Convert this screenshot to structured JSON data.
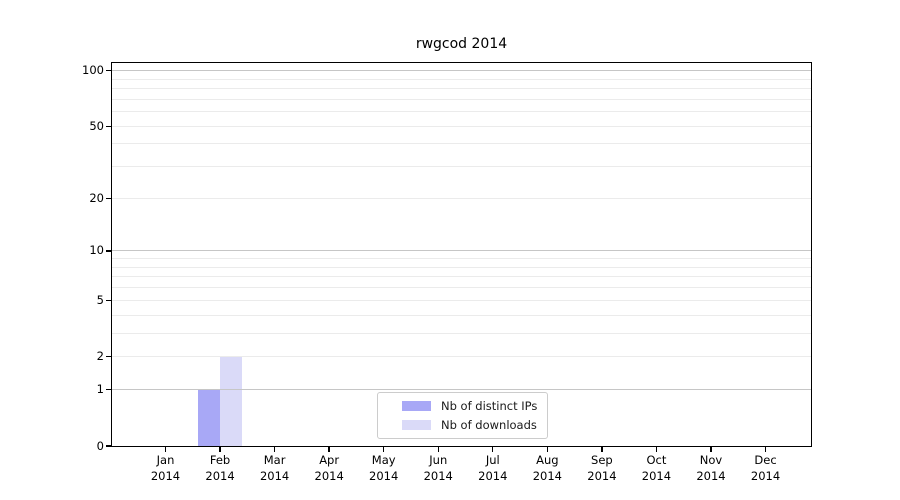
{
  "chart_data": {
    "type": "bar",
    "title": "rwgcod 2014",
    "categories": [
      "Jan",
      "Feb",
      "Mar",
      "Apr",
      "May",
      "Jun",
      "Jul",
      "Aug",
      "Sep",
      "Oct",
      "Nov",
      "Dec"
    ],
    "category_year": "2014",
    "series": [
      {
        "name": "Nb of distinct IPs",
        "color": "#a8a8f6",
        "values": [
          0,
          1,
          0,
          0,
          0,
          0,
          0,
          0,
          0,
          0,
          0,
          0
        ]
      },
      {
        "name": "Nb of downloads",
        "color": "#dadaf8",
        "values": [
          0,
          2,
          0,
          0,
          0,
          0,
          0,
          0,
          0,
          0,
          0,
          0
        ]
      }
    ],
    "y_scale": "log1p",
    "y_ticks": [
      0,
      1,
      2,
      5,
      10,
      20,
      50,
      100
    ],
    "y_major_gridlines": [
      1,
      10,
      100
    ],
    "y_minor_gridlines": [
      2,
      3,
      4,
      5,
      6,
      7,
      8,
      9,
      20,
      30,
      40,
      50,
      60,
      70,
      80,
      90
    ],
    "ylim": [
      0,
      110
    ],
    "grid": "both",
    "legend_position": "lower center"
  },
  "colors": {
    "background": "#ffffff",
    "spine": "#000000",
    "major_grid": "#c6c6c6",
    "minor_grid": "#ebebeb",
    "legend_border": "#cccccc",
    "text": "#000000"
  }
}
